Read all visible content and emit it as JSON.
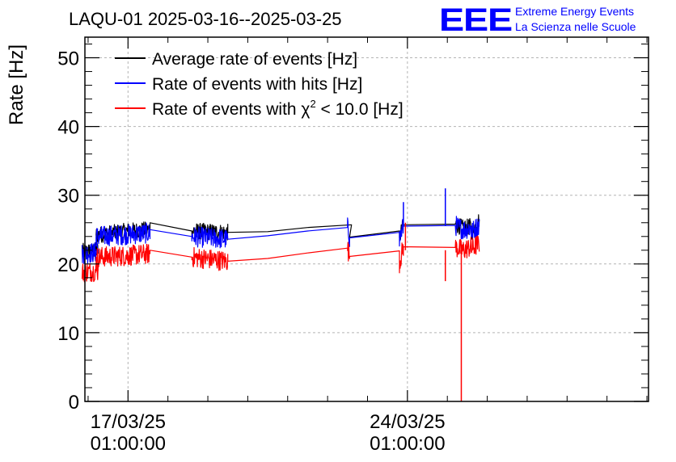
{
  "header": {
    "title": "LAQU-01 2025-03-16--2025-03-25",
    "logo_text": "EEE",
    "logo_line1": "Extreme Energy Events",
    "logo_line2": "La Scienza nelle Scuole"
  },
  "colors": {
    "average": "#000000",
    "hits": "#0000ff",
    "chi2": "#ff0000",
    "logo": "#0000ff",
    "grid": "#b4b4b4"
  },
  "chart_data": {
    "type": "line",
    "title": "LAQU-01 2025-03-16--2025-03-25",
    "xlabel": "",
    "ylabel": "Rate [Hz]",
    "ylim": [
      0,
      53
    ],
    "yticks": [
      0,
      10,
      20,
      30,
      40,
      50
    ],
    "xlim_days": [
      -1.08,
      13.04
    ],
    "x_date_note": "x in days relative to 17/03/25 01:00:00",
    "xticks": [
      {
        "x": 0,
        "line1": "17/03/25",
        "line2": "01:00:00"
      },
      {
        "x": 7,
        "line1": "24/03/25",
        "line2": "01:00:00"
      }
    ],
    "grid": true,
    "legend_position": "top-left",
    "series": [
      {
        "name": "Average rate of events [Hz]",
        "key": "average",
        "segments": [
          [
            [
              -1.15,
              21.8
            ],
            [
              -0.75,
              22.0
            ],
            [
              -0.8,
              24.2
            ],
            [
              0.0,
              24.8
            ],
            [
              0.55,
              25.0
            ],
            [
              0.55,
              26.0
            ],
            [
              1.6,
              24.8
            ],
            [
              2.5,
              24.6
            ],
            [
              3.5,
              24.7
            ],
            [
              4.5,
              25.3
            ],
            [
              5.6,
              25.7
            ],
            [
              5.55,
              23.9
            ],
            [
              6.8,
              24.8
            ],
            [
              6.8,
              23.8
            ],
            [
              6.9,
              25.7
            ],
            [
              8.2,
              25.8
            ],
            [
              8.4,
              25.2
            ],
            [
              8.6,
              25.5
            ],
            [
              8.6,
              24.6
            ],
            [
              8.8,
              26.5
            ]
          ]
        ]
      },
      {
        "name": "Rate of events with hits [Hz]",
        "key": "hits",
        "segments": [
          [
            [
              -1.15,
              21.5
            ],
            [
              -0.75,
              21.7
            ],
            [
              -0.8,
              24.0
            ],
            [
              0.0,
              24.3
            ],
            [
              0.55,
              24.5
            ],
            [
              0.55,
              25.0
            ],
            [
              1.6,
              24.0
            ],
            [
              2.5,
              23.6
            ],
            [
              3.5,
              24.1
            ],
            [
              4.5,
              24.8
            ],
            [
              5.5,
              25.3
            ],
            [
              5.55,
              23.8
            ],
            [
              6.8,
              24.6
            ],
            [
              6.8,
              23.7
            ],
            [
              6.9,
              25.5
            ],
            [
              8.2,
              25.6
            ],
            [
              8.4,
              25.0
            ],
            [
              8.6,
              25.3
            ],
            [
              8.6,
              24.6
            ],
            [
              8.8,
              25.7
            ]
          ]
        ],
        "spikes": [
          [
            6.9,
            29.0
          ],
          [
            7.95,
            31.0
          ]
        ]
      },
      {
        "name": "Rate of events with χ² < 10.0 [Hz]",
        "key": "chi2",
        "segments": [
          [
            [
              -1.15,
              18.8
            ],
            [
              -0.75,
              19.0
            ],
            [
              -0.8,
              21.0
            ],
            [
              0.0,
              21.2
            ],
            [
              0.55,
              21.5
            ],
            [
              0.55,
              22.0
            ],
            [
              1.6,
              21.0
            ],
            [
              2.5,
              20.4
            ],
            [
              3.5,
              20.8
            ],
            [
              4.5,
              21.6
            ],
            [
              5.5,
              22.3
            ],
            [
              5.55,
              21.1
            ],
            [
              6.8,
              21.9
            ],
            [
              6.8,
              20.2
            ],
            [
              6.9,
              22.5
            ],
            [
              8.2,
              22.4
            ],
            [
              8.4,
              22.0
            ],
            [
              8.6,
              22.5
            ],
            [
              8.6,
              22.2
            ],
            [
              8.8,
              23.0
            ]
          ]
        ],
        "spikes": [
          [
            6.95,
            26.0
          ],
          [
            7.95,
            17.5
          ],
          [
            8.35,
            0.0
          ]
        ]
      }
    ],
    "legend_entries": [
      {
        "label": "Average rate of events [Hz]",
        "color": "#000000"
      },
      {
        "label": "Rate of events with hits [Hz]",
        "color": "#0000ff"
      },
      {
        "label_main": "Rate of events with χ",
        "label_sup": "2",
        "label_tail": " < 10.0 [Hz]",
        "color": "#ff0000"
      }
    ]
  }
}
